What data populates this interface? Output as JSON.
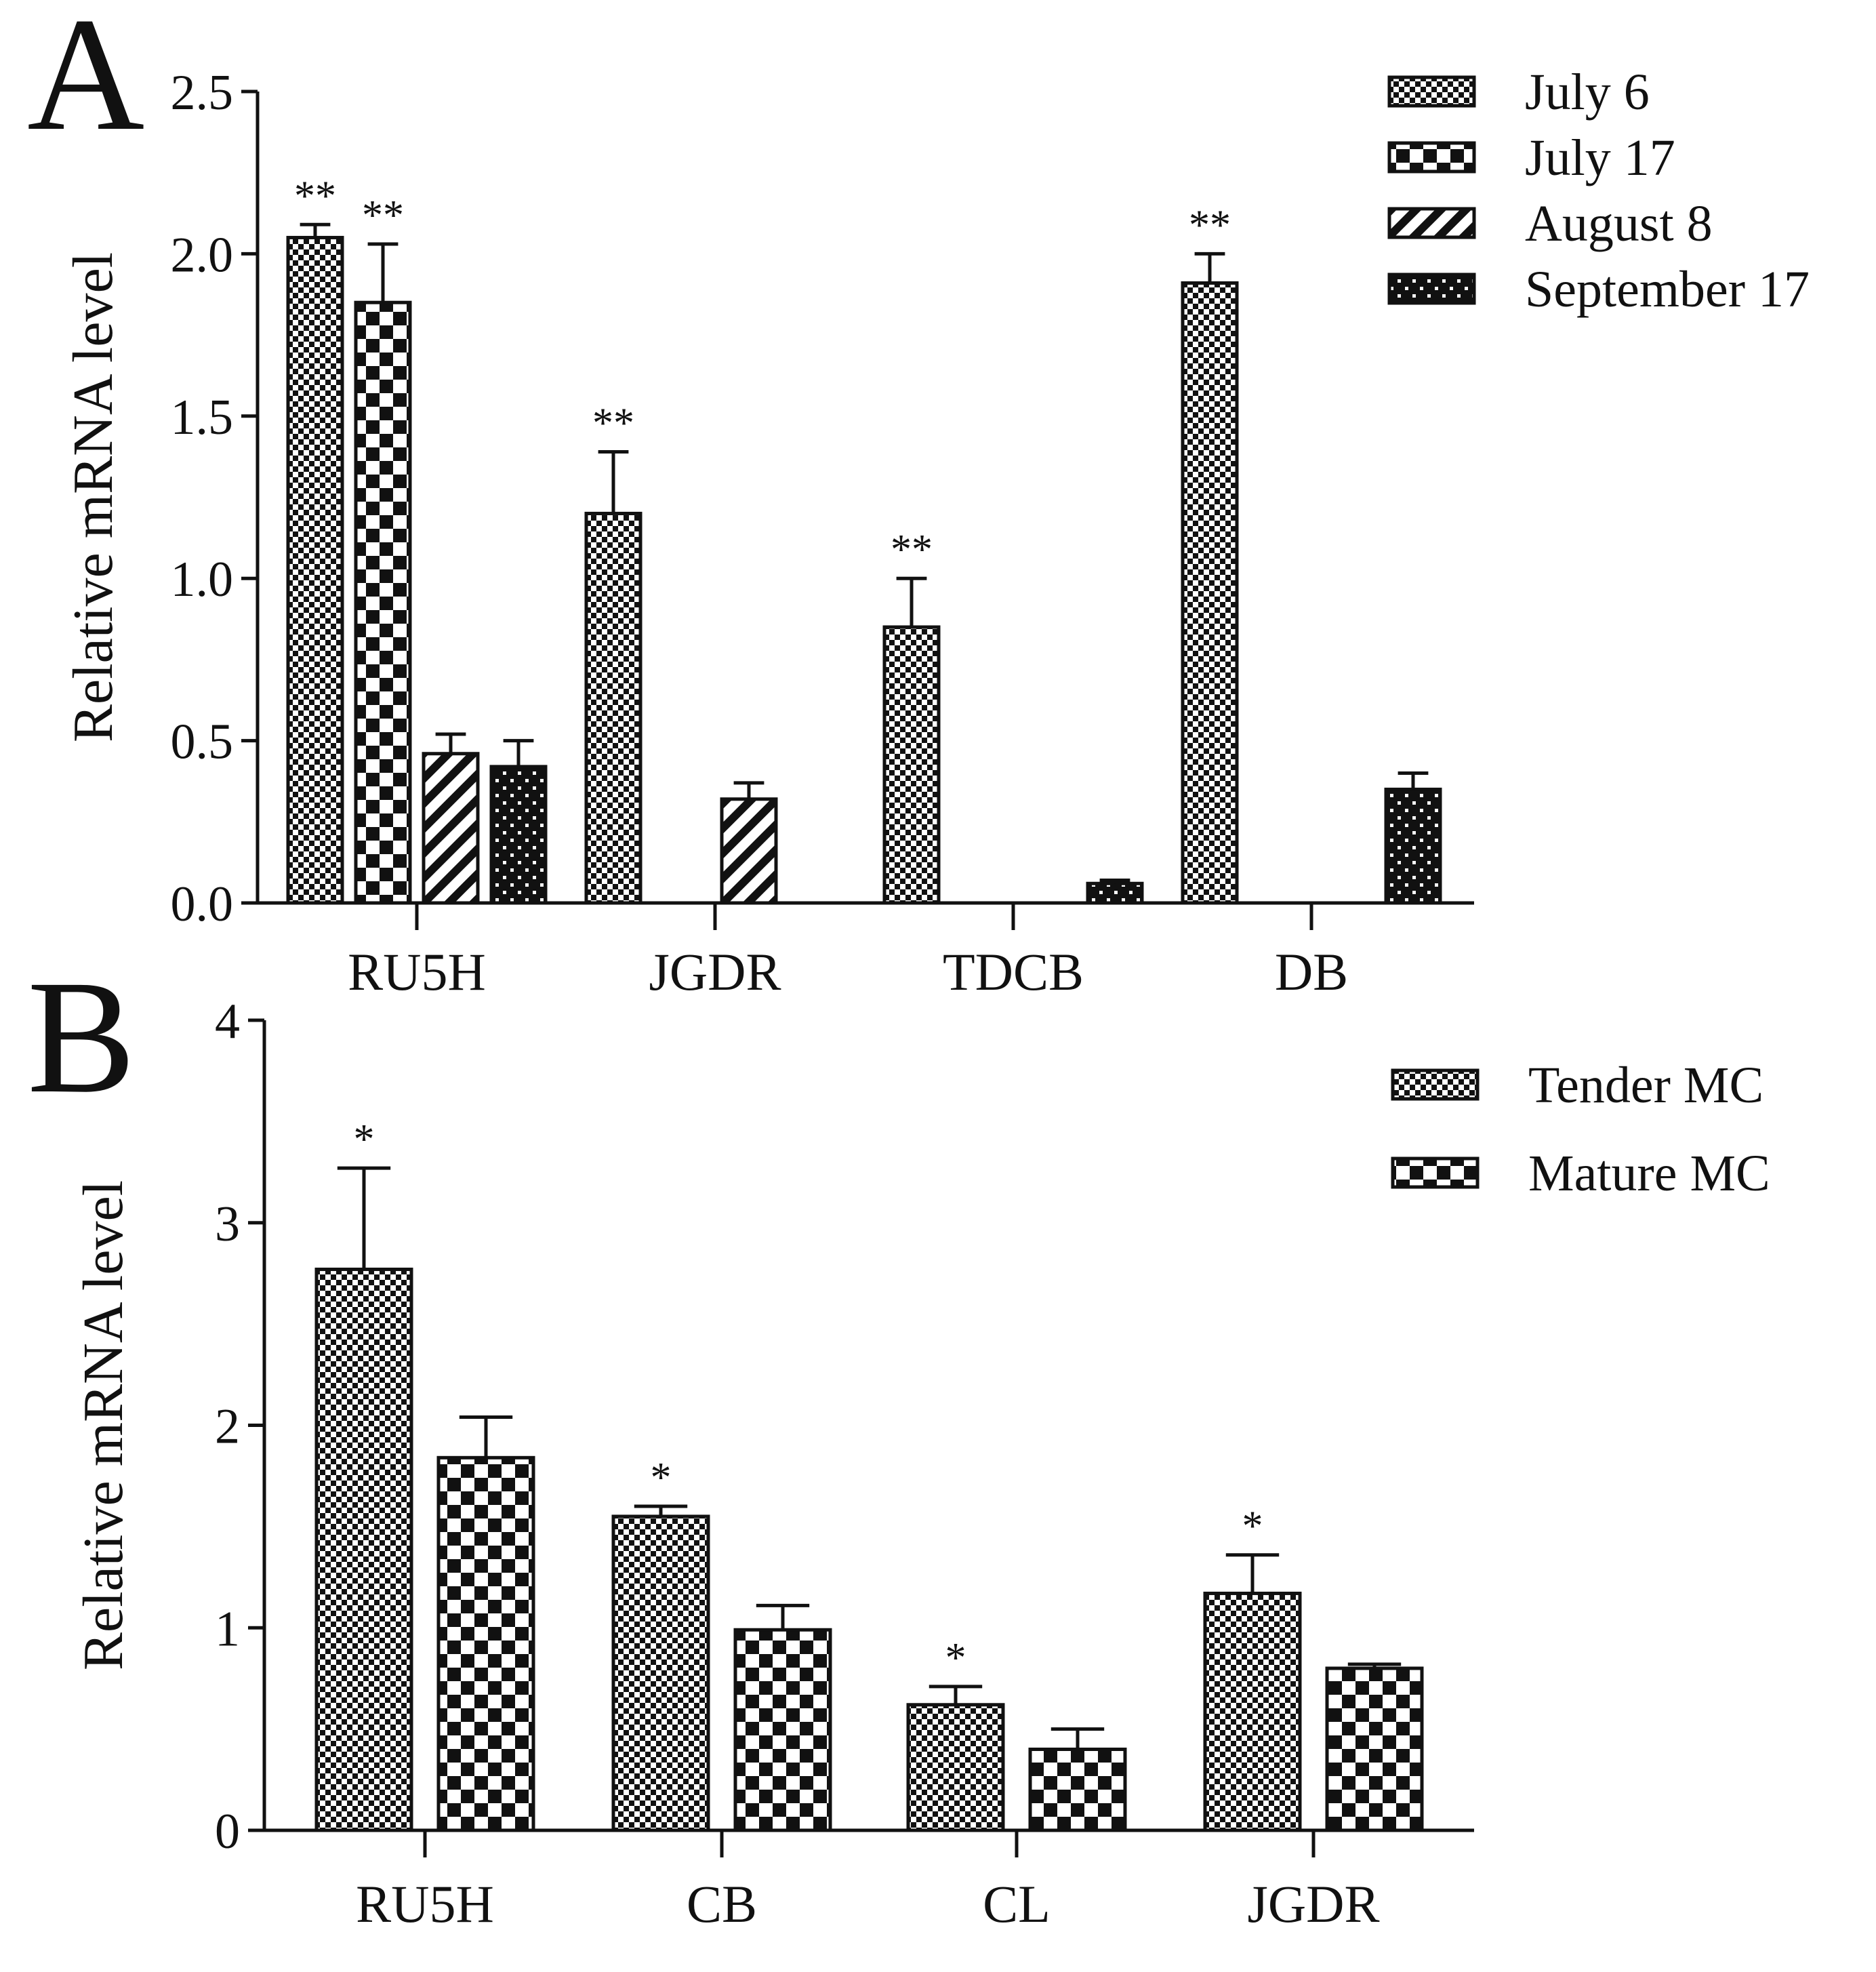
{
  "chart_data": [
    {
      "panel": "A",
      "type": "bar",
      "ylabel": "Relative mRNA level",
      "ylim": [
        0,
        2.5
      ],
      "yticks": [
        "0.0",
        "0.5",
        "1.0",
        "1.5",
        "2.0",
        "2.5"
      ],
      "ytick_values": [
        0,
        0.5,
        1.0,
        1.5,
        2.0,
        2.5
      ],
      "categories": [
        "RU5H",
        "JGDR",
        "TDCB",
        "DB"
      ],
      "legend_position": "top-right",
      "series": [
        {
          "name": "July 6",
          "pattern": "pat-small-check",
          "values": [
            2.05,
            1.2,
            0.85,
            1.91
          ],
          "errors": [
            0.04,
            0.19,
            0.15,
            0.09
          ],
          "sig": [
            "**",
            "**",
            "**",
            "**"
          ]
        },
        {
          "name": "July 17",
          "pattern": "pat-large-check",
          "values": [
            1.85,
            0,
            0,
            0
          ],
          "errors": [
            0.18,
            0,
            0,
            0
          ],
          "sig": [
            "**",
            "",
            "",
            ""
          ]
        },
        {
          "name": "August 8",
          "pattern": "pat-diag",
          "values": [
            0.46,
            0.32,
            0,
            0
          ],
          "errors": [
            0.06,
            0.05,
            0,
            0
          ],
          "sig": [
            "",
            "",
            "",
            ""
          ]
        },
        {
          "name": "September 17",
          "pattern": "pat-dots",
          "values": [
            0.42,
            0,
            0.06,
            0.35
          ],
          "errors": [
            0.08,
            0,
            0.01,
            0.05
          ],
          "sig": [
            "",
            "",
            "",
            ""
          ]
        }
      ]
    },
    {
      "panel": "B",
      "type": "bar",
      "ylabel": "Relative mRNA level",
      "ylim": [
        0,
        4
      ],
      "yticks": [
        "0",
        "1",
        "2",
        "3",
        "4"
      ],
      "ytick_values": [
        0,
        1,
        2,
        3,
        4
      ],
      "categories": [
        "RU5H",
        "CB",
        "CL",
        "JGDR"
      ],
      "legend_position": "top-right",
      "series": [
        {
          "name": "Tender MC",
          "pattern": "pat-small-check",
          "values": [
            2.77,
            1.55,
            0.62,
            1.17
          ],
          "errors": [
            0.5,
            0.05,
            0.09,
            0.19
          ],
          "sig": [
            "*",
            "*",
            "*",
            "*"
          ]
        },
        {
          "name": "Mature MC",
          "pattern": "pat-large-check",
          "values": [
            1.84,
            0.99,
            0.4,
            0.8
          ],
          "errors": [
            0.2,
            0.12,
            0.1,
            0.02
          ],
          "sig": [
            "",
            "",
            "",
            ""
          ]
        }
      ]
    }
  ]
}
